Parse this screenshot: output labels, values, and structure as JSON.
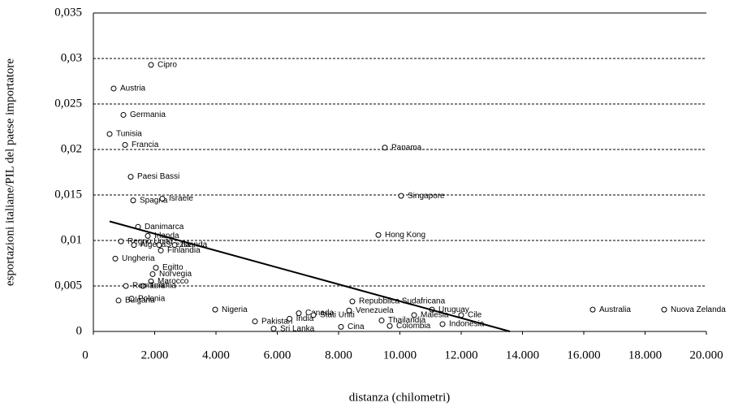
{
  "chart_data": {
    "type": "scatter",
    "x_label": "distanza (chilometri)",
    "y_label": "esportazioni italiane/PIL del paese importatore",
    "labels": [
      "Cipro",
      "Austria",
      "Germania",
      "Tunisia",
      "Francia",
      "Paesi Bassi",
      "Spagna",
      "Israele",
      "Panama",
      "Singapore",
      "Danimarca",
      "Irlanda",
      "Regno Unito",
      "Algeria",
      "Svezia",
      "Islanda",
      "Finlandia",
      "Ungheria",
      "Egitto",
      "Norvegia",
      "Marocco",
      "Turchia",
      "Romania",
      "Polonia",
      "Bulgaria",
      "Nigeria",
      "Pakistan",
      "India",
      "Sri Lanka",
      "Canada",
      "Stati Uniti",
      "Cina",
      "Venezuela",
      "Repubblica Sudafricana",
      "Hong Kong",
      "Uruguay",
      "Cile",
      "Malesia",
      "Thailandia",
      "Colombia",
      "Indonesia",
      "Australia",
      "Nuova Zelanda"
    ],
    "x": [
      1881,
      662,
      980,
      530,
      1033,
      1219,
      1298,
      2250,
      9510,
      10040,
      1457,
      1775,
      900,
      1325,
      2146,
      2649,
      2200,
      715,
      2040,
      1934,
      1881,
      1616,
      1060,
      1245,
      821,
      3974,
      5272,
      6400,
      5881,
      6702,
      7179,
      8079,
      8344,
      8450,
      9298,
      11046,
      12000,
      10464,
      9404,
      9669,
      11391,
      16291,
      18622
    ],
    "values": [
      0.0293,
      0.0267,
      0.0238,
      0.0217,
      0.0205,
      0.017,
      0.0144,
      0.0146,
      0.0202,
      0.0149,
      0.0115,
      0.0105,
      0.0099,
      0.0095,
      0.0095,
      0.0095,
      0.0089,
      0.008,
      0.007,
      0.0063,
      0.0055,
      0.005,
      0.005,
      0.0036,
      0.0034,
      0.0024,
      0.0011,
      0.0014,
      0.0003,
      0.002,
      0.0018,
      0.0005,
      0.0023,
      0.0033,
      0.0106,
      0.0024,
      0.0018,
      0.0018,
      0.0012,
      0.0006,
      0.0008,
      0.0024,
      0.0024
    ],
    "trendline": {
      "x": [
        530,
        13590
      ],
      "values": [
        0.0121,
        0
      ]
    },
    "xlim": [
      0,
      20000
    ],
    "ylim": [
      0,
      0.035
    ],
    "xticks": [
      0,
      {
        "value": 2000,
        "label": "2.000"
      },
      {
        "value": 4000,
        "label": "4.000"
      },
      {
        "value": 6000,
        "label": "6.000"
      },
      {
        "value": 8000,
        "label": "8.000"
      },
      {
        "value": 10000,
        "label": "10.000"
      },
      {
        "value": 12000,
        "label": "12.000"
      },
      {
        "value": 14000,
        "label": "14.000"
      },
      {
        "value": 16000,
        "label": "16.000"
      },
      {
        "value": 18000,
        "label": "18.000"
      },
      {
        "value": 20000,
        "label": "20.000"
      }
    ],
    "yticks": [
      0,
      {
        "value": 0.005,
        "label": "0,005"
      },
      {
        "value": 0.01,
        "label": "0,01"
      },
      {
        "value": 0.015,
        "label": "0,015"
      },
      {
        "value": 0.02,
        "label": "0,02"
      },
      {
        "value": 0.025,
        "label": "0,025"
      },
      {
        "value": 0.03,
        "label": "0,03"
      },
      {
        "value": 0.035,
        "label": "0,035"
      }
    ],
    "grid": true
  }
}
